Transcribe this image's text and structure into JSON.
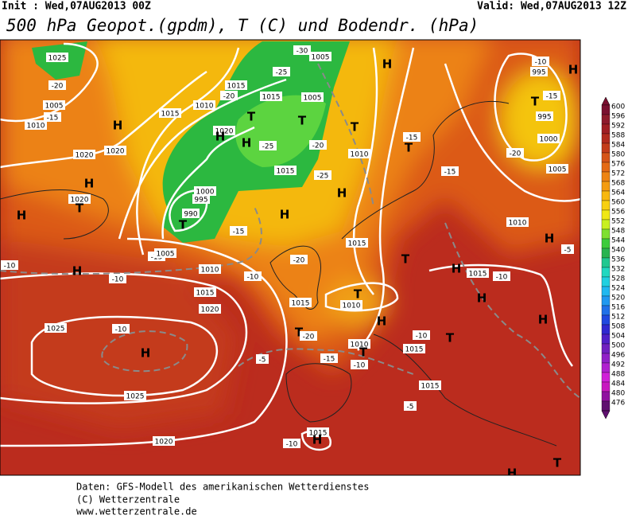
{
  "header": {
    "init": "Init : Wed,07AUG2013 00Z",
    "valid": "Valid: Wed,07AUG2013 12Z",
    "title": "500 hPa Geopot.(gpdm), T (C) und Bodendr. (hPa)"
  },
  "colorbar": {
    "levels": [
      600,
      596,
      592,
      588,
      584,
      580,
      576,
      572,
      568,
      564,
      560,
      556,
      552,
      548,
      544,
      540,
      536,
      532,
      528,
      524,
      520,
      516,
      512,
      508,
      504,
      500,
      496,
      492,
      488,
      484,
      480,
      476
    ],
    "colors": [
      "#7a1030",
      "#8e1a2c",
      "#a01e24",
      "#b22a1e",
      "#c43c1a",
      "#d65418",
      "#e46a14",
      "#ee8412",
      "#f49c10",
      "#f8b80e",
      "#f8d010",
      "#f0e814",
      "#c8f020",
      "#7ee030",
      "#3ccc3c",
      "#28b450",
      "#20c890",
      "#20d8c0",
      "#20d0e0",
      "#20b8f0",
      "#2098f0",
      "#2070e8",
      "#2048e0",
      "#3028d0",
      "#5020c8",
      "#7020c0",
      "#9020c8",
      "#b020d0",
      "#d020d8",
      "#c818c0",
      "#9010a0",
      "#601070"
    ]
  },
  "map_labels": [
    "1025",
    "-20",
    "1005",
    "-15",
    "1010",
    "H",
    "1015",
    "1020",
    "1020",
    "H",
    "1020",
    "T",
    "H",
    "-10",
    "H",
    "-15",
    "1005",
    "1010",
    "-10",
    "1015",
    "1020",
    "1025",
    "-10",
    "H",
    "1025",
    "1020",
    "-5",
    "990",
    "995",
    "1000",
    "T",
    "-15",
    "T",
    "T",
    "H",
    "1015",
    "-25",
    "H",
    "H",
    "1015",
    "T",
    "H",
    "1015",
    "-10",
    "-20",
    "-10",
    "1015",
    "1010",
    "T",
    "T",
    "-20",
    "-15",
    "1010",
    "T",
    "-10",
    "-10",
    "1015",
    "H",
    "H",
    "T",
    "H",
    "H",
    "1015",
    "-5",
    "1015",
    "H",
    "-10",
    "T",
    "H",
    "H",
    "T",
    "1010",
    "-15",
    "T",
    "-15",
    "1010",
    "1005",
    "1000",
    "T",
    "995",
    "995",
    "-15",
    "-20",
    "-10",
    "H",
    "-5",
    "-30",
    "1005",
    "-25",
    "1015",
    "1005",
    "-20",
    "-25",
    "1010",
    "1015",
    "-20",
    "1020",
    "H"
  ],
  "footer": [
    "Daten: GFS-Modell des amerikanischen Wetterdienstes",
    "(C) Wetterzentrale",
    "www.wetterzentrale.de"
  ]
}
